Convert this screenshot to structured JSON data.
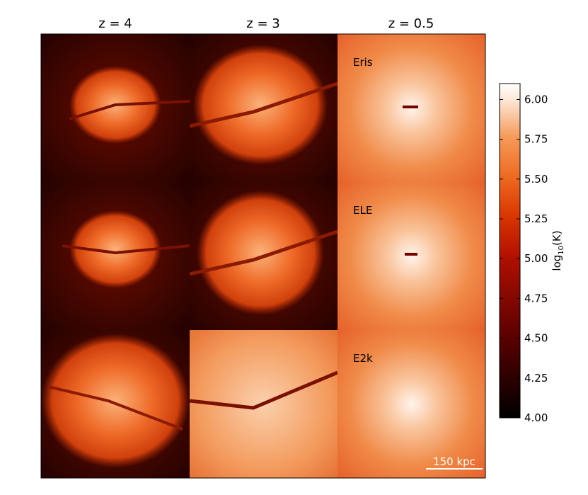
{
  "columns": [
    "z = 4",
    "z = 3",
    "z = 0.5"
  ],
  "rows": [
    "Eris",
    "ELE",
    "E2k"
  ],
  "scale_bar": "150 kpc",
  "colorbar": {
    "label": {
      "prefix": "log",
      "sub": "10",
      "suffix": "(K)"
    },
    "lim": [
      4.0,
      6.1
    ],
    "ticks": [
      {
        "value": 4.0,
        "label": "4.00"
      },
      {
        "value": 4.25,
        "label": "4.25"
      },
      {
        "value": 4.5,
        "label": "4.50"
      },
      {
        "value": 4.75,
        "label": "4.75"
      },
      {
        "value": 5.0,
        "label": "5.00"
      },
      {
        "value": 5.25,
        "label": "5.25"
      },
      {
        "value": 5.5,
        "label": "5.50"
      },
      {
        "value": 5.75,
        "label": "5.75"
      },
      {
        "value": 6.0,
        "label": "6.00"
      }
    ]
  }
}
